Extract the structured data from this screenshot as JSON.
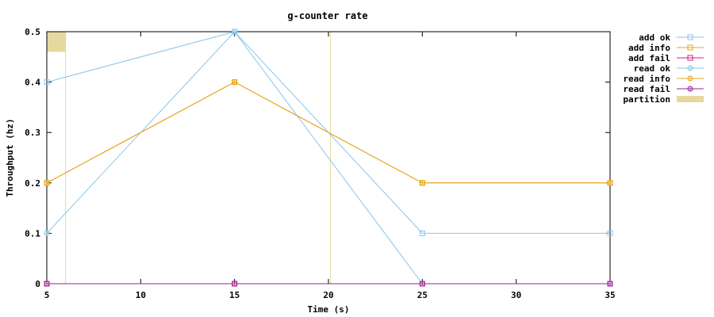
{
  "chart_data": {
    "type": "line",
    "title": "g-counter rate",
    "xlabel": "Time (s)",
    "ylabel": "Throughput (hz)",
    "xlim": [
      5,
      35
    ],
    "ylim": [
      0,
      0.5
    ],
    "x_ticks": [
      5,
      10,
      15,
      20,
      25,
      30,
      35
    ],
    "y_ticks": [
      0,
      0.1,
      0.2,
      0.3,
      0.4,
      0.5
    ],
    "x_tick_labels": [
      "5",
      "10",
      "15",
      "20",
      "25",
      "30",
      "35"
    ],
    "y_tick_labels": [
      "0",
      "0.1",
      "0.2",
      "0.3",
      "0.4",
      "0.5"
    ],
    "grid": false,
    "legend_position": "outside-right",
    "series": [
      {
        "name": "add ok",
        "color": "#87c5eb",
        "marker": "square",
        "x": [
          5,
          15,
          25,
          35
        ],
        "y": [
          0.4,
          0.5,
          0.1,
          0.1
        ]
      },
      {
        "name": "add info",
        "color": "#e8a317",
        "marker": "square",
        "x": [
          5,
          15,
          25,
          35
        ],
        "y": [
          0.2,
          0.4,
          0.2,
          0.2
        ]
      },
      {
        "name": "add fail",
        "color": "#d0207a",
        "marker": "square",
        "x": [
          5,
          15,
          25,
          35
        ],
        "y": [
          0,
          0,
          0,
          0
        ]
      },
      {
        "name": "read ok",
        "color": "#87c5eb",
        "marker": "circle",
        "x": [
          5,
          15,
          25,
          35
        ],
        "y": [
          0.1,
          0.5,
          0,
          0
        ]
      },
      {
        "name": "read info",
        "color": "#e8a317",
        "marker": "circle",
        "x": [
          5,
          15,
          25,
          35
        ],
        "y": [
          0.2,
          0.4,
          0.2,
          0.2
        ]
      },
      {
        "name": "read fail",
        "color": "#9b1f9b",
        "marker": "circle",
        "x": [
          5,
          15,
          25,
          35
        ],
        "y": [
          0,
          0,
          0,
          0
        ]
      }
    ],
    "partition": {
      "name": "partition",
      "color": "#e6d9a0",
      "line_x": [
        6,
        20.1
      ],
      "box_x": [
        5,
        6
      ],
      "box_y": [
        0.46,
        0.5
      ]
    }
  }
}
